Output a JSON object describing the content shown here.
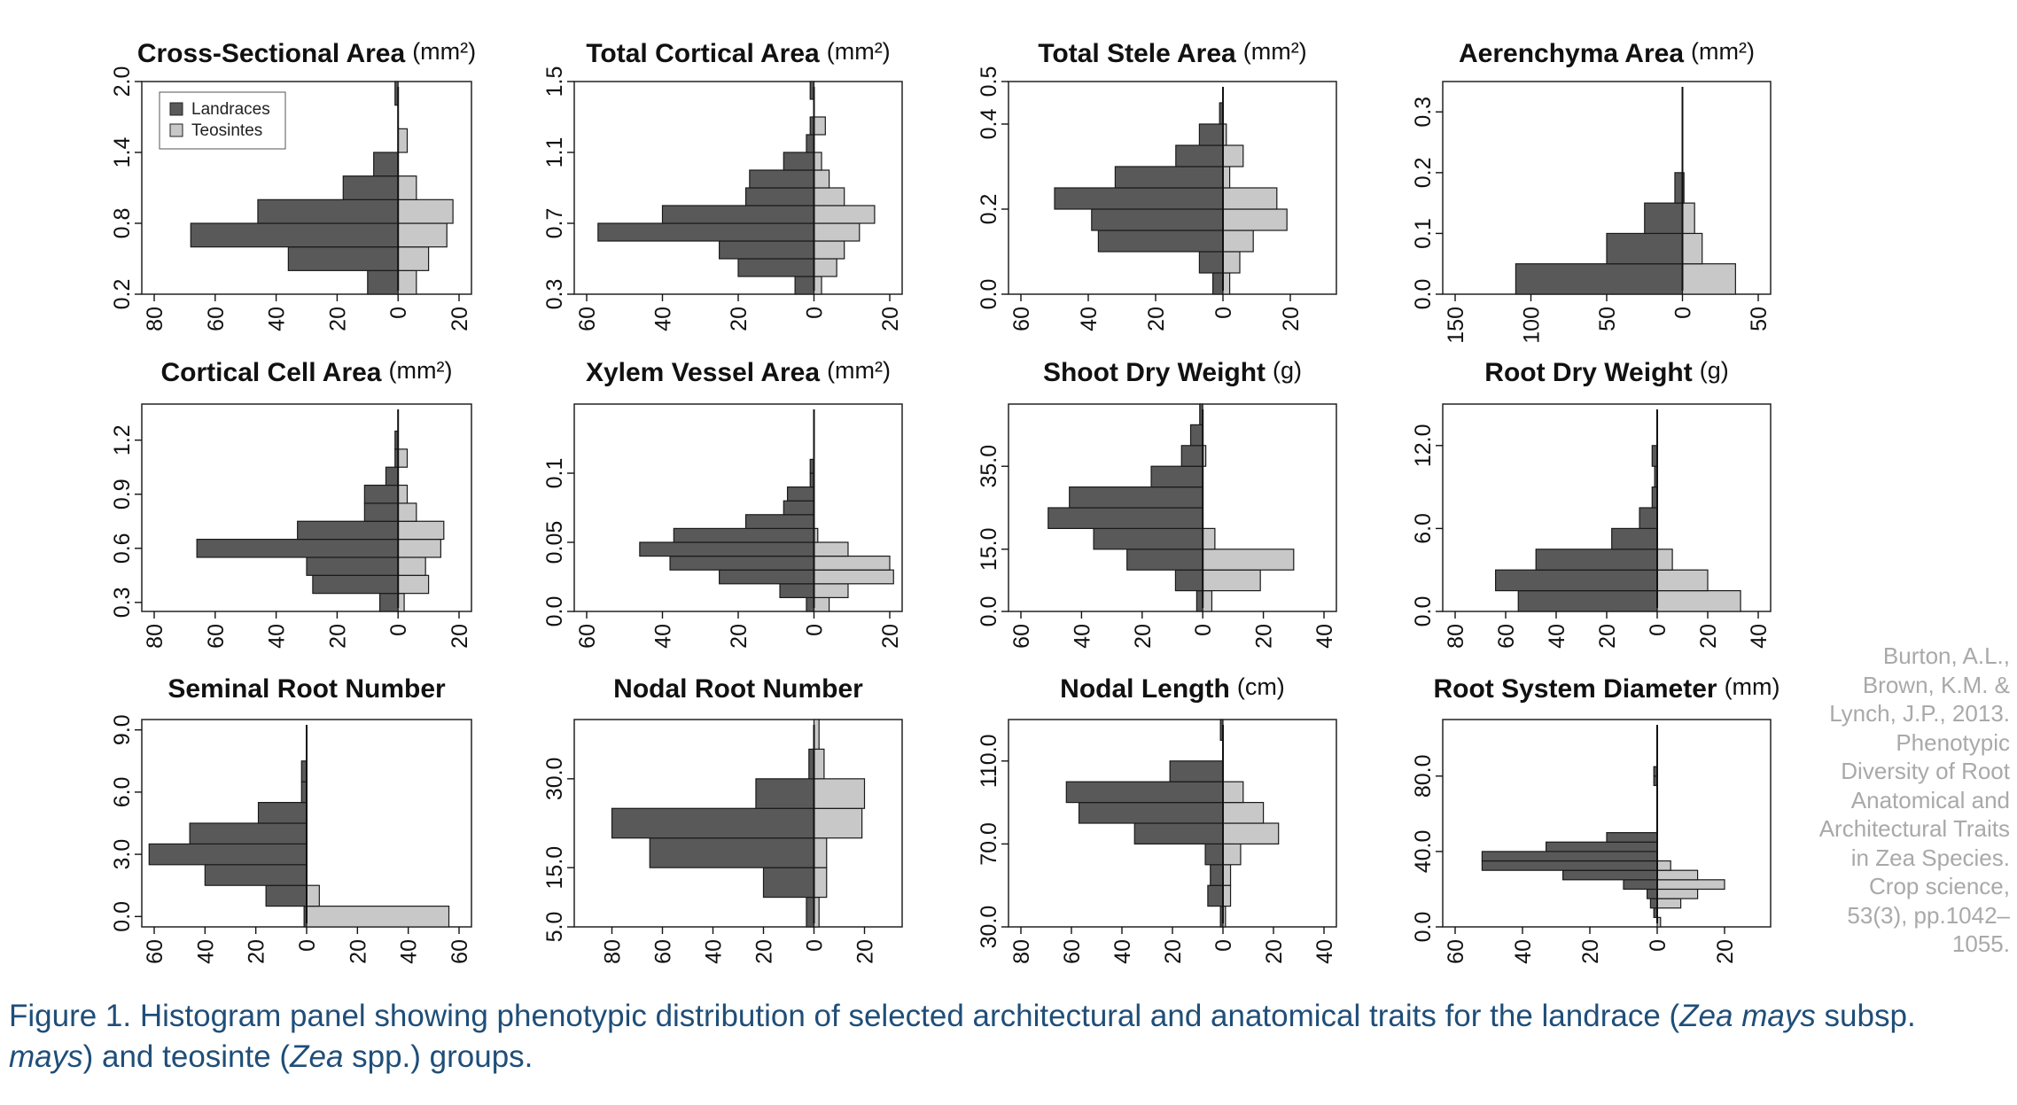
{
  "figure": {
    "legend": [
      {
        "label": "Landraces",
        "color": "#595959"
      },
      {
        "label": "Teosintes",
        "color": "#c8c8c8"
      }
    ],
    "citation_lines": [
      "Burton, A.L.,",
      "Brown, K.M. &",
      "Lynch, J.P., 2013.",
      "Phenotypic",
      "Diversity of Root",
      "Anatomical and",
      "Architectural Traits",
      "in Zea Species.",
      "Crop science,",
      "53(3), pp.1042–",
      "1055."
    ],
    "caption": {
      "segments": [
        {
          "text": "Figure 1. Histogram panel showing phenotypic distribution of selected architectural and anatomical traits for the landrace (",
          "italic": false
        },
        {
          "text": "Zea mays",
          "italic": true
        },
        {
          "text": " subsp. ",
          "italic": false
        },
        {
          "text": "mays",
          "italic": true
        },
        {
          "text": ") and teosinte (",
          "italic": false
        },
        {
          "text": "Zea",
          "italic": true
        },
        {
          "text": " spp.) groups.",
          "italic": false
        }
      ]
    }
  },
  "chart_data": [
    {
      "type": "bar",
      "orientation": "back-to-back-histogram",
      "title": "Cross-Sectional Area",
      "unit": "(mm²)",
      "ylim": [
        0.2,
        2.0
      ],
      "y_ticks": [
        "0.2",
        "0.8",
        "1.4",
        "2.0"
      ],
      "x_left_max": 80,
      "x_left_ticks": [
        80,
        60,
        40,
        20,
        0
      ],
      "x_right_max": 20,
      "x_right_ticks": [
        0,
        20
      ],
      "bin_edges": [
        0.2,
        0.4,
        0.6,
        0.8,
        1.0,
        1.2,
        1.4,
        1.6,
        1.8,
        2.0
      ],
      "series": [
        {
          "name": "Landraces",
          "values": [
            10,
            36,
            68,
            46,
            18,
            8,
            0,
            0,
            1
          ]
        },
        {
          "name": "Teosintes",
          "values": [
            6,
            10,
            16,
            18,
            6,
            0,
            3,
            0,
            0
          ]
        }
      ],
      "legend": "top-left"
    },
    {
      "type": "bar",
      "orientation": "back-to-back-histogram",
      "title": "Total Cortical Area",
      "unit": "(mm²)",
      "ylim": [
        0.3,
        1.5
      ],
      "y_ticks": [
        "0.3",
        "0.7",
        "1.1",
        "1.5"
      ],
      "x_left_max": 60,
      "x_left_ticks": [
        60,
        40,
        20,
        0
      ],
      "x_right_max": 20,
      "x_right_ticks": [
        0,
        20
      ],
      "bin_edges": [
        0.3,
        0.4,
        0.5,
        0.6,
        0.7,
        0.8,
        0.9,
        1.0,
        1.1,
        1.2,
        1.3,
        1.4,
        1.5
      ],
      "series": [
        {
          "name": "Landraces",
          "values": [
            5,
            20,
            25,
            57,
            40,
            18,
            17,
            8,
            2,
            1,
            0,
            1
          ]
        },
        {
          "name": "Teosintes",
          "values": [
            2,
            6,
            8,
            12,
            16,
            8,
            4,
            2,
            0,
            3,
            0,
            0
          ]
        }
      ]
    },
    {
      "type": "bar",
      "orientation": "back-to-back-histogram",
      "title": "Total Stele Area",
      "unit": "(mm²)",
      "ylim": [
        0.0,
        0.5
      ],
      "y_ticks": [
        "0.0",
        "0.2",
        "0.4",
        "0.5"
      ],
      "x_left_max": 60,
      "x_left_ticks": [
        60,
        40,
        20,
        0
      ],
      "x_right_max": 30,
      "x_right_ticks": [
        0,
        20
      ],
      "bin_edges": [
        0.0,
        0.05,
        0.1,
        0.15,
        0.2,
        0.25,
        0.3,
        0.35,
        0.4,
        0.45,
        0.5,
        0.55
      ],
      "series": [
        {
          "name": "Landraces",
          "values": [
            3,
            7,
            37,
            39,
            50,
            32,
            14,
            7,
            1,
            0,
            0
          ]
        },
        {
          "name": "Teosintes",
          "values": [
            2,
            5,
            9,
            19,
            16,
            2,
            6,
            1,
            0,
            0,
            0
          ]
        }
      ]
    },
    {
      "type": "bar",
      "orientation": "back-to-back-histogram",
      "title": "Aerenchyma Area",
      "unit": "(mm²)",
      "ylim": [
        0.0,
        0.35
      ],
      "y_ticks": [
        "0.0",
        "0.1",
        "0.2",
        "0.3"
      ],
      "x_left_max": 150,
      "x_left_ticks": [
        150,
        100,
        50,
        0
      ],
      "x_right_max": 50,
      "x_right_ticks": [
        0,
        50
      ],
      "bin_edges": [
        0.0,
        0.05,
        0.1,
        0.15,
        0.2,
        0.25,
        0.3,
        0.35
      ],
      "series": [
        {
          "name": "Landraces",
          "values": [
            110,
            50,
            25,
            5,
            0,
            0,
            0
          ]
        },
        {
          "name": "Teosintes",
          "values": [
            35,
            13,
            8,
            1,
            0,
            0,
            0
          ]
        }
      ]
    },
    {
      "type": "bar",
      "orientation": "back-to-back-histogram",
      "title": "Cortical Cell Area",
      "unit": "(mm²)",
      "ylim": [
        0.25,
        1.4
      ],
      "y_ticks": [
        "0.3",
        "0.6",
        "0.9",
        "1.2"
      ],
      "x_left_max": 80,
      "x_left_ticks": [
        80,
        60,
        40,
        20,
        0
      ],
      "x_right_max": 20,
      "x_right_ticks": [
        0,
        20
      ],
      "bin_edges": [
        0.25,
        0.35,
        0.45,
        0.55,
        0.65,
        0.75,
        0.85,
        0.95,
        1.05,
        1.15,
        1.25,
        1.35
      ],
      "series": [
        {
          "name": "Landraces",
          "values": [
            6,
            28,
            30,
            66,
            33,
            11,
            11,
            4,
            1,
            1
          ]
        },
        {
          "name": "Teosintes",
          "values": [
            2,
            10,
            9,
            14,
            15,
            6,
            3,
            0,
            3,
            0
          ]
        }
      ]
    },
    {
      "type": "bar",
      "orientation": "back-to-back-histogram",
      "title": "Xylem Vessel Area",
      "unit": "(mm²)",
      "ylim": [
        0.0,
        0.15
      ],
      "y_ticks": [
        "0.0",
        "0.05",
        "0.1"
      ],
      "x_left_max": 60,
      "x_left_ticks": [
        60,
        40,
        20,
        0
      ],
      "x_right_max": 20,
      "x_right_ticks": [
        0,
        20
      ],
      "bin_edges": [
        0.0,
        0.01,
        0.02,
        0.03,
        0.04,
        0.05,
        0.06,
        0.07,
        0.08,
        0.09,
        0.1,
        0.11,
        0.12
      ],
      "series": [
        {
          "name": "Landraces",
          "values": [
            2,
            9,
            25,
            38,
            46,
            37,
            18,
            8,
            7,
            1,
            1,
            0
          ]
        },
        {
          "name": "Teosintes",
          "values": [
            4,
            9,
            21,
            20,
            9,
            1,
            0,
            0,
            0,
            0,
            0,
            0
          ]
        }
      ]
    },
    {
      "type": "bar",
      "orientation": "back-to-back-histogram",
      "title": "Shoot Dry Weight",
      "unit": "(g)",
      "ylim": [
        0,
        50
      ],
      "y_ticks": [
        "0.0",
        "15.0",
        "35.0"
      ],
      "x_left_max": 60,
      "x_left_ticks": [
        60,
        40,
        20,
        0
      ],
      "x_right_max": 40,
      "x_right_ticks": [
        0,
        20,
        40
      ],
      "bin_edges": [
        0,
        5,
        10,
        15,
        20,
        25,
        30,
        35,
        40,
        45,
        50
      ],
      "series": [
        {
          "name": "Landraces",
          "values": [
            2,
            9,
            25,
            36,
            51,
            44,
            17,
            7,
            4,
            1
          ]
        },
        {
          "name": "Teosintes",
          "values": [
            3,
            19,
            30,
            4,
            0,
            0,
            0,
            1,
            0,
            0
          ]
        }
      ]
    },
    {
      "type": "bar",
      "orientation": "back-to-back-histogram",
      "title": "Root Dry Weight",
      "unit": "(g)",
      "ylim": [
        0,
        15
      ],
      "y_ticks": [
        "0.0",
        "6.0",
        "12.0"
      ],
      "x_left_max": 80,
      "x_left_ticks": [
        80,
        60,
        40,
        20,
        0
      ],
      "x_right_max": 40,
      "x_right_ticks": [
        0,
        20,
        40
      ],
      "bin_edges": [
        0,
        1.5,
        3,
        4.5,
        6,
        7.5,
        9,
        10.5,
        12,
        13.5
      ],
      "series": [
        {
          "name": "Landraces",
          "values": [
            55,
            64,
            48,
            18,
            7,
            2,
            1,
            2,
            0
          ]
        },
        {
          "name": "Teosintes",
          "values": [
            33,
            20,
            6,
            0,
            0,
            0,
            0,
            0,
            0
          ]
        }
      ]
    },
    {
      "type": "bar",
      "orientation": "back-to-back-histogram",
      "title": "Seminal Root Number",
      "unit": "",
      "ylim": [
        -0.5,
        9.5
      ],
      "y_ticks": [
        "0.0",
        "3.0",
        "6.0",
        "9.0"
      ],
      "x_left_max": 60,
      "x_left_ticks": [
        60,
        40,
        20,
        0
      ],
      "x_right_max": 60,
      "x_right_ticks": [
        0,
        20,
        40,
        60
      ],
      "bin_edges": [
        -0.5,
        0.5,
        1.5,
        2.5,
        3.5,
        4.5,
        5.5,
        6.5,
        7.5,
        8.5,
        9.5
      ],
      "series": [
        {
          "name": "Landraces",
          "values": [
            1,
            16,
            40,
            62,
            46,
            19,
            2,
            2,
            0,
            0
          ]
        },
        {
          "name": "Teosintes",
          "values": [
            56,
            5,
            0,
            0,
            0,
            0,
            0,
            0,
            0,
            0
          ]
        }
      ]
    },
    {
      "type": "bar",
      "orientation": "back-to-back-histogram",
      "title": "Nodal Root Number",
      "unit": "",
      "ylim": [
        5,
        40
      ],
      "y_ticks": [
        "5.0",
        "15.0",
        "30.0"
      ],
      "x_left_max": 90,
      "x_left_ticks": [
        80,
        60,
        40,
        20,
        0
      ],
      "x_right_max": 30,
      "x_right_ticks": [
        0,
        20
      ],
      "bin_edges": [
        5,
        10,
        15,
        20,
        25,
        30,
        35,
        40
      ],
      "series": [
        {
          "name": "Landraces",
          "values": [
            3,
            20,
            65,
            80,
            23,
            2,
            0
          ]
        },
        {
          "name": "Teosintes",
          "values": [
            2,
            5,
            5,
            19,
            20,
            4,
            2
          ]
        }
      ]
    },
    {
      "type": "bar",
      "orientation": "back-to-back-histogram",
      "title": "Nodal Length",
      "unit": "(cm)",
      "ylim": [
        30,
        130
      ],
      "y_ticks": [
        "30.0",
        "70.0",
        "110.0"
      ],
      "x_left_max": 80,
      "x_left_ticks": [
        80,
        60,
        40,
        20,
        0
      ],
      "x_right_max": 40,
      "x_right_ticks": [
        0,
        20,
        40
      ],
      "bin_edges": [
        30,
        40,
        50,
        60,
        70,
        80,
        90,
        100,
        110,
        120,
        130
      ],
      "series": [
        {
          "name": "Landraces",
          "values": [
            1,
            6,
            5,
            7,
            35,
            57,
            62,
            21,
            0,
            1
          ]
        },
        {
          "name": "Teosintes",
          "values": [
            1,
            3,
            3,
            7,
            22,
            16,
            8,
            0,
            0,
            0
          ]
        }
      ]
    },
    {
      "type": "bar",
      "orientation": "back-to-back-histogram",
      "title": "Root System Diameter",
      "unit": "(mm)",
      "ylim": [
        0,
        110
      ],
      "y_ticks": [
        "0.0",
        "40.0",
        "80.0"
      ],
      "x_left_max": 60,
      "x_left_ticks": [
        60,
        40,
        20,
        0
      ],
      "x_right_max": 30,
      "x_right_ticks": [
        0,
        20
      ],
      "bin_edges": [
        0,
        5,
        10,
        15,
        20,
        25,
        30,
        35,
        40,
        45,
        50,
        55,
        60,
        65,
        70,
        75,
        80,
        85,
        90,
        95,
        100,
        105
      ],
      "series": [
        {
          "name": "Landraces",
          "values": [
            0,
            1,
            2,
            3,
            10,
            28,
            52,
            52,
            33,
            15,
            0,
            0,
            0,
            0,
            0,
            1,
            1,
            0,
            0,
            0,
            0
          ]
        },
        {
          "name": "Teosintes",
          "values": [
            1,
            0,
            7,
            12,
            20,
            12,
            4,
            0,
            0,
            0,
            0,
            0,
            0,
            0,
            0,
            0,
            0,
            0,
            0,
            0,
            0
          ]
        }
      ]
    }
  ]
}
